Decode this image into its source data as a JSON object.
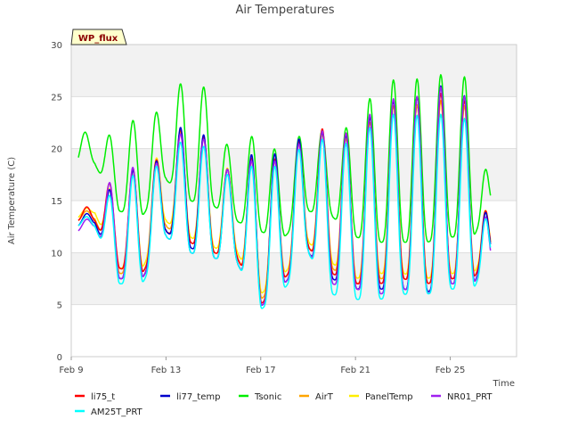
{
  "chart_data": {
    "type": "line",
    "title": "Air Temperatures",
    "xlabel": "Time",
    "ylabel": "Air Temperature (C)",
    "badge": "WP_flux",
    "x_range_days": [
      9,
      27.8
    ],
    "xlim_labels": [
      "Feb 9",
      "Feb 13",
      "Feb 17",
      "Feb 21",
      "Feb 25"
    ],
    "x_ticks_day": [
      9,
      13,
      17,
      21,
      25
    ],
    "ylim": [
      0,
      30
    ],
    "y_ticks": [
      0,
      5,
      10,
      15,
      20,
      25,
      30
    ],
    "grid": true,
    "legend_position": "bottom",
    "daily_extremes": {
      "days": [
        9.3,
        10,
        11,
        12,
        13,
        14,
        15,
        16,
        17,
        18,
        19,
        20,
        21,
        22,
        23,
        24,
        25,
        26,
        26.7
      ],
      "series": [
        {
          "name": "li75_t",
          "color": "#ff0000",
          "max": [
            13.5,
            15.4,
            17.5,
            18.5,
            19.2,
            23.5,
            19.5,
            17.0,
            20.5,
            18.0,
            22.5,
            21.5,
            21.5,
            24.0,
            25.0,
            25.0,
            25.5,
            24.0,
            11.0
          ],
          "min": [
            13.0,
            13.0,
            8.5,
            8.0,
            12.0,
            11.0,
            10.0,
            9.5,
            5.0,
            7.5,
            10.5,
            8.0,
            7.0,
            7.0,
            7.5,
            7.0,
            7.5,
            7.5,
            11.0
          ]
        },
        {
          "name": "li77_temp",
          "color": "#0000cc",
          "max": [
            13.0,
            14.6,
            17.0,
            18.5,
            19.0,
            24.0,
            19.5,
            17.0,
            21.0,
            18.5,
            22.5,
            21.0,
            21.5,
            24.0,
            25.0,
            25.0,
            26.7,
            24.0,
            10.8
          ],
          "min": [
            12.5,
            12.8,
            7.5,
            7.5,
            12.0,
            10.5,
            9.5,
            9.0,
            4.8,
            7.0,
            10.0,
            7.5,
            6.5,
            6.5,
            6.5,
            6.2,
            7.0,
            7.0,
            10.8
          ]
        },
        {
          "name": "Tsonic",
          "color": "#00ee00",
          "max": [
            22.0,
            21.0,
            21.5,
            23.5,
            23.5,
            28.0,
            24.5,
            17.5,
            23.5,
            17.5,
            23.5,
            20.5,
            23.0,
            26.0,
            27.0,
            26.5,
            27.5,
            26.5,
            15.5
          ],
          "min": [
            18.5,
            18.5,
            14.0,
            13.5,
            17.0,
            15.0,
            14.5,
            13.0,
            12.0,
            11.5,
            14.0,
            13.5,
            11.5,
            11.0,
            11.0,
            11.0,
            11.5,
            11.5,
            15.5
          ]
        },
        {
          "name": "AirT",
          "color": "#ffa500",
          "max": [
            13.5,
            14.6,
            17.0,
            18.5,
            19.0,
            23.0,
            19.5,
            17.0,
            20.0,
            18.0,
            22.0,
            21.0,
            21.0,
            23.5,
            24.5,
            24.0,
            25.0,
            23.5,
            11.0
          ],
          "min": [
            13.0,
            13.2,
            8.0,
            8.0,
            12.5,
            11.0,
            10.0,
            9.5,
            5.5,
            7.5,
            10.5,
            8.5,
            7.0,
            7.5,
            7.5,
            7.0,
            7.5,
            7.5,
            11.0
          ]
        },
        {
          "name": "PanelTemp",
          "color": "#ffee00",
          "max": [
            13.8,
            14.8,
            17.0,
            18.5,
            19.5,
            23.0,
            19.8,
            17.0,
            20.0,
            18.0,
            22.0,
            21.0,
            21.0,
            23.5,
            24.5,
            24.0,
            25.0,
            23.5,
            11.2
          ],
          "min": [
            13.3,
            13.8,
            8.5,
            8.5,
            13.0,
            11.5,
            10.5,
            10.0,
            6.0,
            8.0,
            11.0,
            9.0,
            7.5,
            8.0,
            8.0,
            7.5,
            8.0,
            8.0,
            11.2
          ]
        },
        {
          "name": "NR01_PRT",
          "color": "#a020f0",
          "max": [
            12.5,
            14.0,
            18.5,
            18.0,
            19.0,
            23.0,
            19.5,
            17.0,
            20.0,
            18.0,
            22.0,
            21.5,
            21.5,
            24.5,
            25.0,
            25.0,
            26.5,
            24.0,
            10.2
          ],
          "min": [
            12.0,
            12.5,
            7.5,
            7.5,
            11.5,
            10.0,
            9.5,
            9.0,
            4.8,
            7.0,
            10.0,
            7.0,
            6.5,
            6.0,
            6.5,
            6.0,
            7.0,
            7.0,
            10.2
          ]
        },
        {
          "name": "AM25T_PRT",
          "color": "#00ffff",
          "max": [
            13.0,
            14.0,
            16.5,
            18.0,
            18.5,
            22.0,
            19.0,
            16.5,
            19.5,
            17.5,
            21.5,
            20.5,
            20.5,
            23.0,
            23.5,
            23.0,
            23.5,
            22.5,
            10.5
          ],
          "min": [
            12.5,
            12.5,
            7.0,
            7.0,
            11.5,
            10.0,
            9.5,
            9.0,
            4.5,
            6.5,
            10.0,
            6.0,
            5.5,
            5.5,
            6.0,
            6.0,
            6.5,
            6.5,
            10.5
          ]
        }
      ]
    },
    "legend": [
      {
        "name": "li75_t",
        "color": "#ff0000"
      },
      {
        "name": "li77_temp",
        "color": "#0000cc"
      },
      {
        "name": "Tsonic",
        "color": "#00ee00"
      },
      {
        "name": "AirT",
        "color": "#ffa500"
      },
      {
        "name": "PanelTemp",
        "color": "#ffee00"
      },
      {
        "name": "NR01_PRT",
        "color": "#a020f0"
      },
      {
        "name": "AM25T_PRT",
        "color": "#00ffff"
      }
    ]
  }
}
